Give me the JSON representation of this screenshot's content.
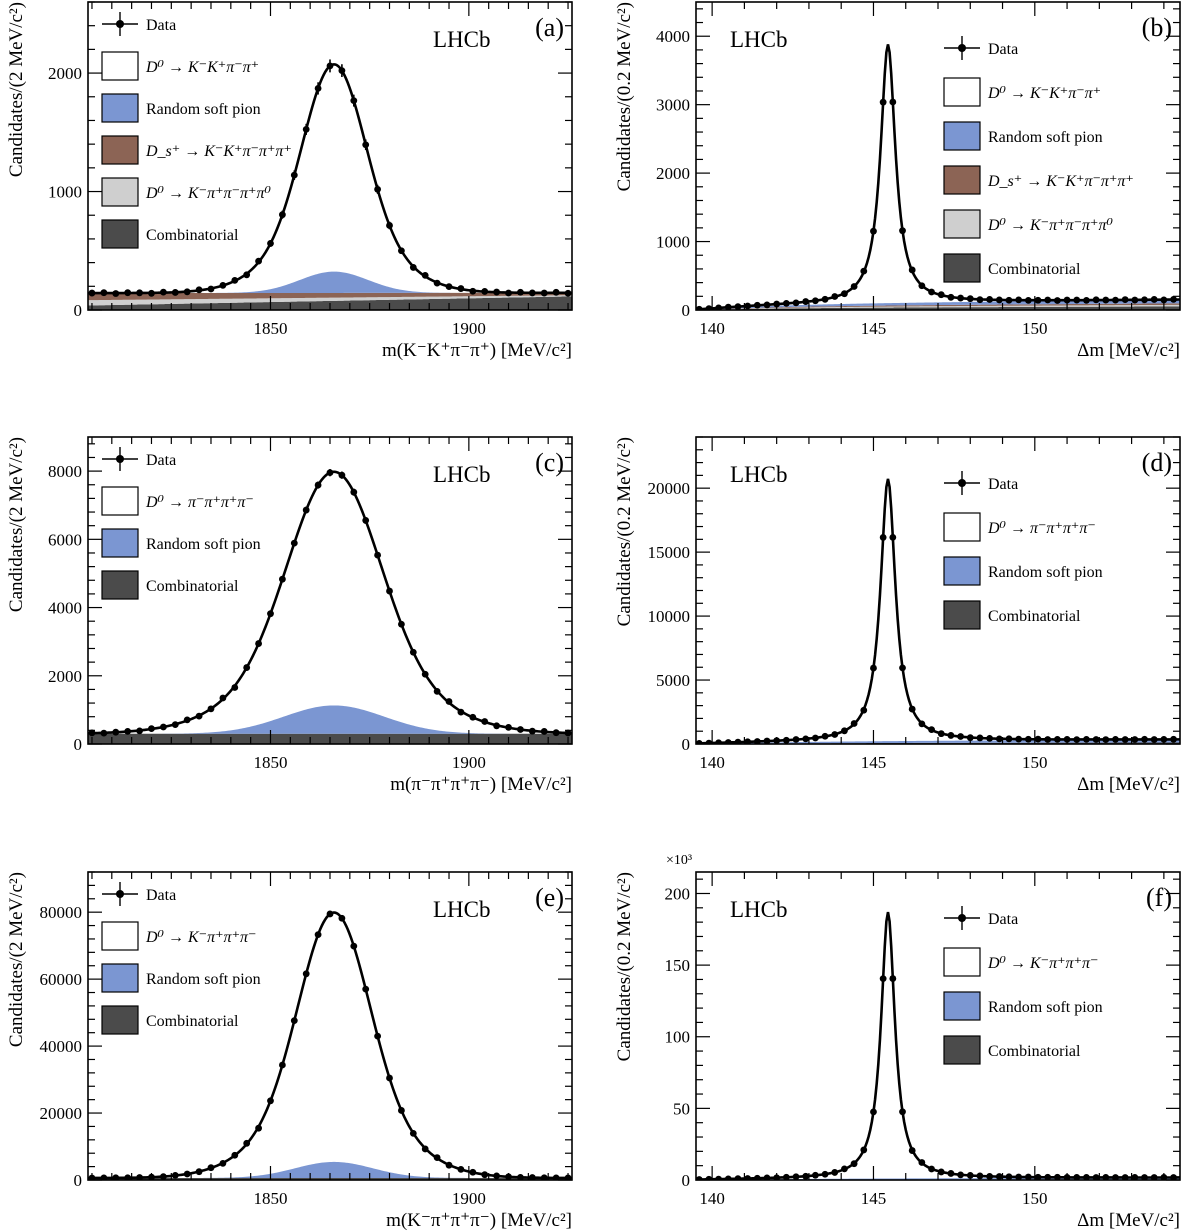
{
  "chart_data": [
    {
      "id": "a",
      "type": "line",
      "panel_label": "(a)",
      "experiment": "LHCb",
      "xlabel": "m(K⁻K⁺π⁻π⁺) [MeV/c²]",
      "ylabel": "Candidates/(2 MeV/c²)",
      "xlim": [
        1804,
        1926
      ],
      "ylim": [
        0,
        2600
      ],
      "xticks": [
        1850,
        1900
      ],
      "yticks": [
        0,
        1000,
        2000
      ],
      "ytick_labels": [
        "0",
        "1000",
        "2000"
      ],
      "yexponent": "",
      "legend": [
        "Data",
        "D⁰ → K⁻K⁺π⁻π⁺",
        "Random soft pion",
        "D_s⁺ → K⁻K⁺π⁻π⁺π⁺",
        "D⁰ → K⁻π⁺π⁻π⁺π⁰",
        "Combinatorial"
      ],
      "legend_position": "top-left",
      "colors": {
        "random": "#7b96d2",
        "ds": "#8c6455",
        "pi0": "#cfcfcf",
        "comb": "#4b4b4b"
      },
      "model": {
        "peak_center": 1866,
        "peak_sigma": 7.5,
        "signal_height": 1750,
        "random_height": 180,
        "comb": [
          38,
          115
        ],
        "pi0": [
          45,
          10
        ],
        "ds": [
          60,
          20
        ]
      },
      "data_x_start": 1805,
      "data_x_step": 3,
      "data_n": 41
    },
    {
      "id": "b",
      "type": "line",
      "panel_label": "(b)",
      "experiment": "LHCb",
      "xlabel": "Δm [MeV/c²]",
      "ylabel": "Candidates/(0.2 MeV/c²)",
      "xlim": [
        139.5,
        154.5
      ],
      "ylim": [
        0,
        4500
      ],
      "xticks": [
        140,
        145,
        150
      ],
      "yticks": [
        0,
        1000,
        2000,
        3000,
        4000
      ],
      "ytick_labels": [
        "0",
        "1000",
        "2000",
        "3000",
        "4000"
      ],
      "yexponent": "",
      "legend": [
        "Data",
        "D⁰ → K⁻K⁺π⁻π⁺",
        "Random soft pion",
        "D_s⁺ → K⁻K⁺π⁻π⁺π⁺",
        "D⁰ → K⁻π⁺π⁻π⁺π⁰",
        "Combinatorial"
      ],
      "legend_position": "top-right",
      "colors": {
        "random": "#7b96d2",
        "ds": "#8c6455",
        "pi0": "#cfcfcf",
        "comb": "#4b4b4b"
      },
      "model": {
        "peak_center": 145.45,
        "peak_gamma": 0.28,
        "signal_height": 3780,
        "bkg_amp": 140,
        "bkg_tau": 1.6
      },
      "data_x_start": 139.6,
      "data_x_step": 0.3,
      "data_n": 50
    },
    {
      "id": "c",
      "type": "line",
      "panel_label": "(c)",
      "experiment": "LHCb",
      "xlabel": "m(π⁻π⁺π⁺π⁻) [MeV/c²]",
      "ylabel": "Candidates/(2 MeV/c²)",
      "xlim": [
        1804,
        1926
      ],
      "ylim": [
        0,
        9000
      ],
      "xticks": [
        1850,
        1900
      ],
      "yticks": [
        0,
        2000,
        4000,
        6000,
        8000
      ],
      "ytick_labels": [
        "0",
        "2000",
        "4000",
        "6000",
        "8000"
      ],
      "yexponent": "",
      "legend": [
        "Data",
        "D⁰ → π⁻π⁺π⁺π⁻",
        "Random soft pion",
        "Combinatorial"
      ],
      "legend_position": "top-left",
      "colors": {
        "random": "#7b96d2",
        "comb": "#4b4b4b"
      },
      "model": {
        "peak_center": 1866,
        "peak_sigma": 11,
        "signal_height": 6850,
        "random_height": 830,
        "comb": [
          300,
          300
        ]
      },
      "data_x_start": 1805,
      "data_x_step": 3,
      "data_n": 41
    },
    {
      "id": "d",
      "type": "line",
      "panel_label": "(d)",
      "experiment": "LHCb",
      "xlabel": "Δm [MeV/c²]",
      "ylabel": "Candidates/(0.2 MeV/c²)",
      "xlim": [
        139.5,
        154.5
      ],
      "ylim": [
        0,
        24000
      ],
      "xticks": [
        140,
        145,
        150
      ],
      "yticks": [
        0,
        5000,
        10000,
        15000,
        20000
      ],
      "ytick_labels": [
        "0",
        "5000",
        "10000",
        "15000",
        "20000"
      ],
      "yexponent": "",
      "legend": [
        "Data",
        "D⁰ → π⁻π⁺π⁺π⁻",
        "Random soft pion",
        "Combinatorial"
      ],
      "legend_position": "top-right",
      "colors": {
        "random": "#7b96d2",
        "comb": "#4b4b4b"
      },
      "model": {
        "peak_center": 145.45,
        "peak_gamma": 0.28,
        "signal_height": 20500,
        "bkg_amp": 320,
        "bkg_tau": 2.0
      },
      "data_x_start": 139.6,
      "data_x_step": 0.3,
      "data_n": 50
    },
    {
      "id": "e",
      "type": "line",
      "panel_label": "(e)",
      "experiment": "LHCb",
      "xlabel": "m(K⁻π⁺π⁺π⁻) [MeV/c²]",
      "ylabel": "Candidates/(2 MeV/c²)",
      "xlim": [
        1804,
        1926
      ],
      "ylim": [
        0,
        92000
      ],
      "xticks": [
        1850,
        1900
      ],
      "yticks": [
        0,
        20000,
        40000,
        60000,
        80000
      ],
      "ytick_labels": [
        "0",
        "20000",
        "40000",
        "60000",
        "80000"
      ],
      "yexponent": "",
      "legend": [
        "Data",
        "D⁰ → K⁻π⁺π⁺π⁻",
        "Random soft pion",
        "Combinatorial"
      ],
      "legend_position": "top-left",
      "colors": {
        "random": "#7b96d2",
        "comb": "#4b4b4b"
      },
      "model": {
        "peak_center": 1866,
        "peak_sigma": 8.5,
        "signal_height": 74500,
        "random_height": 4800,
        "comb": [
          600,
          600
        ]
      },
      "data_x_start": 1805,
      "data_x_step": 3,
      "data_n": 41
    },
    {
      "id": "f",
      "type": "line",
      "panel_label": "(f)",
      "experiment": "LHCb",
      "xlabel": "Δm [MeV/c²]",
      "ylabel": "Candidates/(0.2 MeV/c²)",
      "xlim": [
        139.5,
        154.5
      ],
      "ylim": [
        0,
        215000
      ],
      "xticks": [
        140,
        145,
        150
      ],
      "yticks": [
        0,
        50000,
        100000,
        150000,
        200000
      ],
      "ytick_labels": [
        "0",
        "50",
        "100",
        "150",
        "200"
      ],
      "yexponent": "×10³",
      "legend": [
        "Data",
        "D⁰ → K⁻π⁺π⁺π⁻",
        "Random soft pion",
        "Combinatorial"
      ],
      "legend_position": "top-right",
      "colors": {
        "random": "#7b96d2",
        "comb": "#4b4b4b"
      },
      "model": {
        "peak_center": 145.45,
        "peak_gamma": 0.26,
        "signal_height": 186000,
        "bkg_amp": 1500,
        "bkg_tau": 2.0
      },
      "data_x_start": 139.6,
      "data_x_step": 0.3,
      "data_n": 50
    }
  ]
}
